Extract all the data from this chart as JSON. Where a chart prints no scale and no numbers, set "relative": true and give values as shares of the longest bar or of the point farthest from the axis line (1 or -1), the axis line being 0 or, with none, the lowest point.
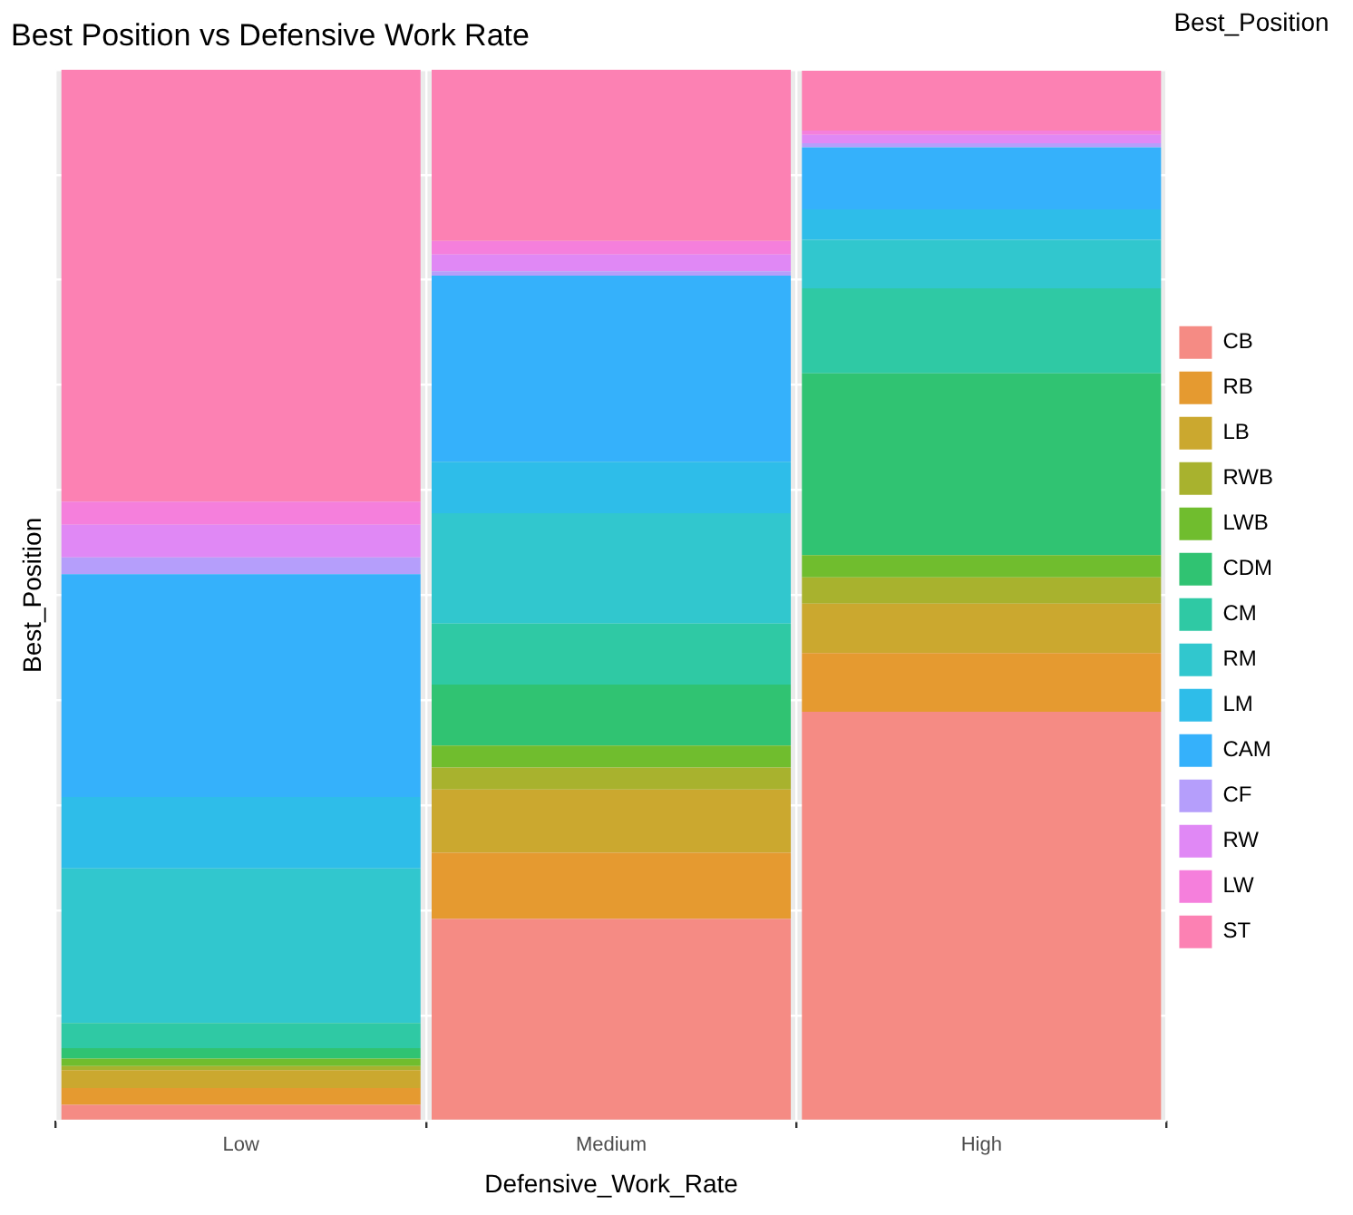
{
  "chart_data": {
    "type": "bar",
    "title": "Best Position vs Defensive Work Rate",
    "xlabel": "Defensive_Work_Rate",
    "ylabel": "Best_Position",
    "legend_title": "Best_Position",
    "categories": [
      "Low",
      "Medium",
      "High"
    ],
    "stacked": true,
    "relative": true,
    "grid": true,
    "legend": "right",
    "tick_labels": "x",
    "series": [
      {
        "name": "CB",
        "color": "#f58b84",
        "values": [
          0.015,
          0.192,
          0.389
        ]
      },
      {
        "name": "RB",
        "color": "#e59a30",
        "values": [
          0.016,
          0.063,
          0.056
        ]
      },
      {
        "name": "LB",
        "color": "#cba82f",
        "values": [
          0.017,
          0.06,
          0.047
        ]
      },
      {
        "name": "RWB",
        "color": "#a8b22e",
        "values": [
          0.004,
          0.021,
          0.025
        ]
      },
      {
        "name": "LWB",
        "color": "#70bd2e",
        "values": [
          0.007,
          0.021,
          0.021
        ]
      },
      {
        "name": "CDM",
        "color": "#30c372",
        "values": [
          0.01,
          0.058,
          0.173
        ]
      },
      {
        "name": "CM",
        "color": "#2fc9a4",
        "values": [
          0.024,
          0.058,
          0.081
        ]
      },
      {
        "name": "RM",
        "color": "#31c7ce",
        "values": [
          0.147,
          0.105,
          0.046
        ]
      },
      {
        "name": "LM",
        "color": "#2ebde9",
        "values": [
          0.068,
          0.049,
          0.029
        ]
      },
      {
        "name": "CAM",
        "color": "#35b1fb",
        "values": [
          0.212,
          0.177,
          0.059
        ]
      },
      {
        "name": "CF",
        "color": "#b59efb",
        "values": [
          0.016,
          0.004,
          0.004
        ]
      },
      {
        "name": "RW",
        "color": "#e088f5",
        "values": [
          0.031,
          0.016,
          0.008
        ]
      },
      {
        "name": "LW",
        "color": "#f57fdc",
        "values": [
          0.022,
          0.013,
          0.004
        ]
      },
      {
        "name": "ST",
        "color": "#fc81b3",
        "values": [
          0.411,
          0.163,
          0.057
        ]
      }
    ]
  }
}
